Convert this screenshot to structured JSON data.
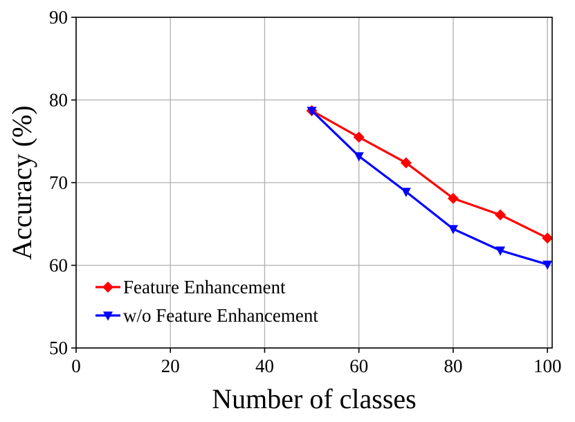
{
  "chart_data": {
    "type": "line",
    "xlabel": "Number of classes",
    "ylabel": "Accuracy (%)",
    "xlim": [
      0,
      101
    ],
    "ylim": [
      50,
      90
    ],
    "xticks": [
      0,
      20,
      40,
      60,
      80,
      100
    ],
    "yticks": [
      50,
      60,
      70,
      80,
      90
    ],
    "grid": true,
    "legend_position": "lower-left",
    "x": [
      50,
      60,
      70,
      80,
      90,
      100
    ],
    "series": [
      {
        "name": "Feature Enhancement",
        "color": "#ff0000",
        "marker": "diamond",
        "values": [
          78.7,
          75.5,
          72.4,
          68.1,
          66.1,
          63.3
        ]
      },
      {
        "name": "w/o Feature Enhancement",
        "color": "#0000ff",
        "marker": "triangle-down",
        "values": [
          78.7,
          73.2,
          68.9,
          64.4,
          61.8,
          60.1
        ]
      }
    ]
  }
}
